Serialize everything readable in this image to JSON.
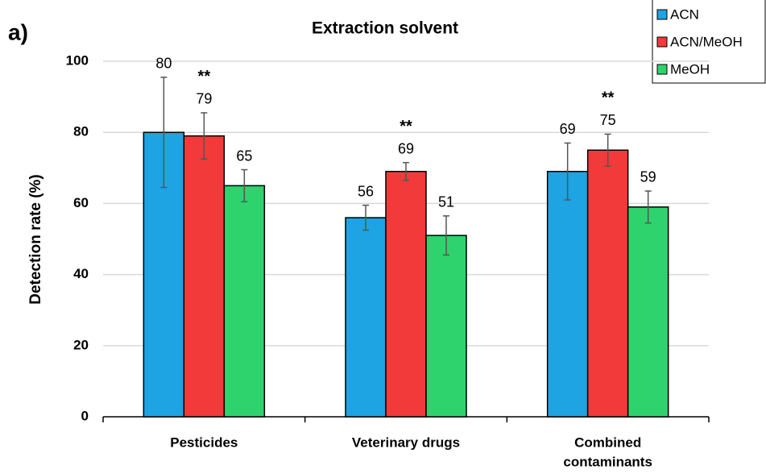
{
  "chart_data": {
    "type": "bar",
    "panel_label": "a)",
    "title": "Extraction solvent",
    "y_label": "Detection rate (%)",
    "categories": [
      [
        "Pesticides"
      ],
      [
        "Veterinary drugs"
      ],
      [
        "Combined",
        "contaminants"
      ]
    ],
    "series": [
      {
        "name": "ACN",
        "color": "#1ea3e3",
        "values": [
          80,
          56,
          69
        ],
        "errors": [
          15.5,
          3.5,
          8
        ]
      },
      {
        "name": "ACN/MeOH",
        "color": "#f23a3a",
        "values": [
          79,
          69,
          75
        ],
        "errors": [
          6.5,
          2.5,
          4.5
        ]
      },
      {
        "name": "MeOH",
        "color": "#2ed36e",
        "values": [
          65,
          51,
          59
        ],
        "errors": [
          4.5,
          5.5,
          4.5
        ]
      }
    ],
    "annotations": [
      "**",
      "**",
      "**"
    ],
    "ylim": [
      0,
      100
    ],
    "yticks": [
      0,
      20,
      40,
      60,
      80,
      100
    ],
    "grid": true,
    "legend": "top-right"
  }
}
